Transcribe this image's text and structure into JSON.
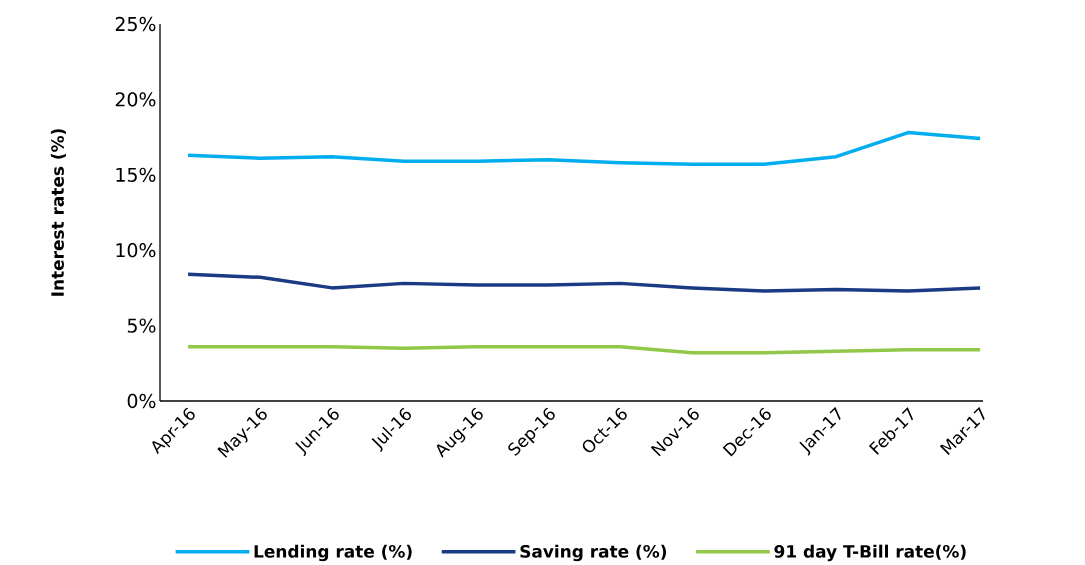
{
  "chart_data": {
    "type": "line",
    "ylabel": "Interest rates (%)",
    "categories": [
      "Apr-16",
      "May-16",
      "Jun-16",
      "Jul-16",
      "Aug-16",
      "Sep-16",
      "Oct-16",
      "Nov-16",
      "Dec-16",
      "Jan-17",
      "Feb-17",
      "Mar-17"
    ],
    "series": [
      {
        "name": "Lending rate (%)",
        "color": "#00aeef",
        "values": [
          16.3,
          16.1,
          16.2,
          15.9,
          15.9,
          16.0,
          15.8,
          15.7,
          15.7,
          16.2,
          17.8,
          17.4
        ]
      },
      {
        "name": "Saving rate (%)",
        "color": "#1b3a84",
        "values": [
          8.4,
          8.2,
          7.5,
          7.8,
          7.7,
          7.7,
          7.8,
          7.5,
          7.3,
          7.4,
          7.3,
          7.5
        ]
      },
      {
        "name": "91 day T-Bill rate(%)",
        "color": "#92c84a",
        "values": [
          3.6,
          3.6,
          3.6,
          3.5,
          3.6,
          3.6,
          3.6,
          3.2,
          3.2,
          3.3,
          3.4,
          3.4
        ]
      }
    ],
    "ylim": [
      0,
      25
    ],
    "yticks": [
      {
        "value": 0,
        "label": "0%"
      },
      {
        "value": 5,
        "label": "5%"
      },
      {
        "value": 10,
        "label": "10%"
      },
      {
        "value": 15,
        "label": "15%"
      },
      {
        "value": 20,
        "label": "20%"
      },
      {
        "value": 25,
        "label": "25%"
      }
    ],
    "grid": false,
    "legend": "bottom",
    "marker": "none",
    "line_style": "solid"
  }
}
